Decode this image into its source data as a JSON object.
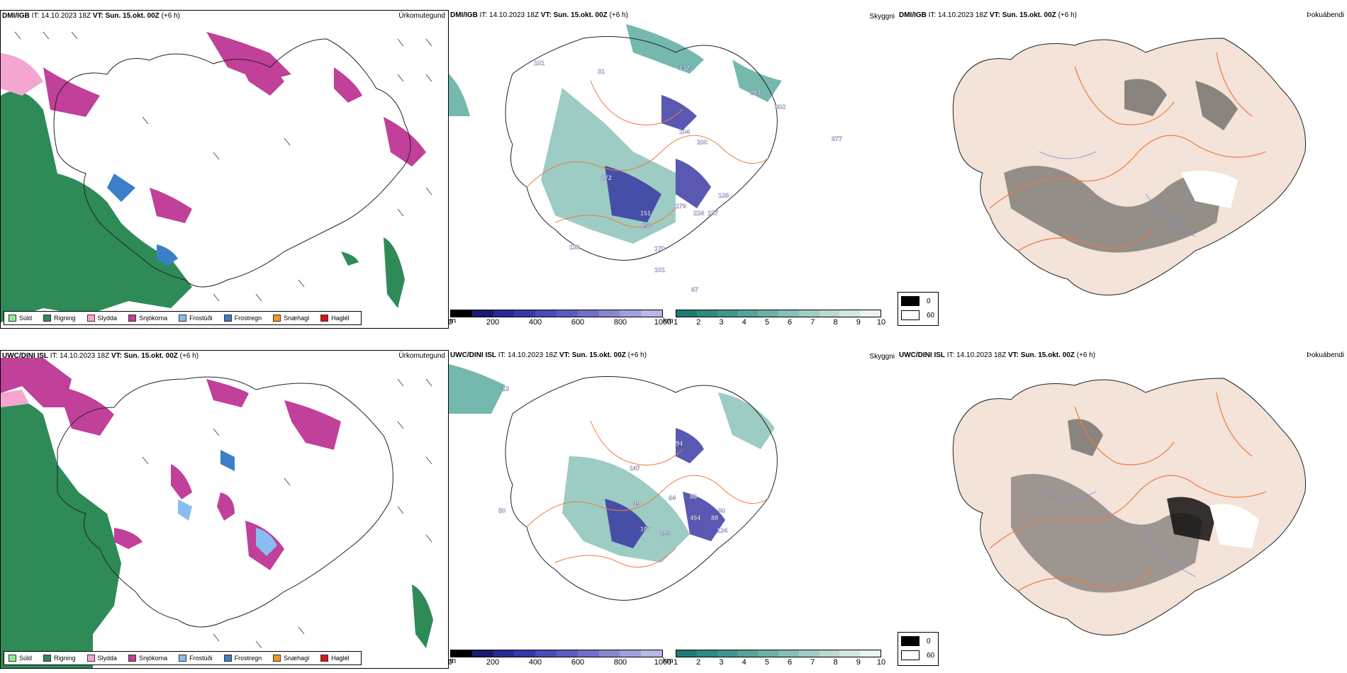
{
  "rows": [
    {
      "model": "DMI/IGB",
      "it_label": "IT:",
      "it_value": "14.10.2023 18Z",
      "vt_label": "VT:",
      "vt_value": "Sun. 15.okt. 00Z",
      "lead": "(+6 h)"
    },
    {
      "model": "UWC/DINI ISL",
      "it_label": "IT:",
      "it_value": "14.10.2023 18Z",
      "vt_label": "VT:",
      "vt_value": "Sun. 15.okt. 00Z",
      "lead": "(+6 h)"
    }
  ],
  "panel_labels": {
    "precip": "Úrkomutegund",
    "cloud": "Skyggni",
    "fog": "Þokuábendi"
  },
  "precip_legend": [
    {
      "label": "Súld",
      "color": "#90EE90"
    },
    {
      "label": "Rigning",
      "color": "#2E8B57"
    },
    {
      "label": "Slydda",
      "color": "#F4A6D0"
    },
    {
      "label": "Snjókoma",
      "color": "#C0409A"
    },
    {
      "label": "Frostúði",
      "color": "#87BDF0"
    },
    {
      "label": "Frostregn",
      "color": "#3A7FC8"
    },
    {
      "label": "Snæhagl",
      "color": "#F39A1F"
    },
    {
      "label": "Haglél",
      "color": "#E01010"
    }
  ],
  "height_bar": {
    "unit": "m",
    "ticks": [
      "0",
      "200",
      "400",
      "600",
      "800",
      "1000"
    ],
    "colors": [
      "#000000",
      "#1a1a6e",
      "#2a2a96",
      "#3838a8",
      "#4a4ab8",
      "#5c5cc0",
      "#7070c8",
      "#8888d2",
      "#a0a0dc",
      "#b8b8e6"
    ]
  },
  "vis_bar": {
    "unit": "km",
    "ticks": [
      "1",
      "2",
      "3",
      "4",
      "5",
      "6",
      "7",
      "8",
      "9",
      "10"
    ],
    "colors": [
      "#1f7a72",
      "#2f8a80",
      "#3f968c",
      "#55a399",
      "#6cb1a7",
      "#85bfb6",
      "#9fcdc5",
      "#bad9d3",
      "#d3e7e3",
      "#ecf4f2"
    ]
  },
  "fog_key": [
    {
      "label": "0",
      "color": "#000000"
    },
    {
      "label": "60",
      "color": "#ffffff"
    }
  ],
  "cloud_numbers": [
    {
      "row": 0,
      "values": [
        "101",
        "31",
        "132",
        "283",
        "802",
        "104",
        "200",
        "877",
        "172",
        "128",
        "179",
        "151",
        "224",
        "137",
        "256",
        "139",
        "170",
        "101",
        "67"
      ]
    },
    {
      "row": 1,
      "values": [
        "13",
        "94",
        "147",
        "84",
        "86",
        "49",
        "90",
        "454",
        "88",
        "107",
        "293",
        "124",
        "50"
      ]
    }
  ],
  "colors": {
    "land_fog": "#f3e3d8",
    "roads": "#f07a3a",
    "rivers": "#7a8ae0",
    "cloud_teal": "#3a9a8a",
    "cloud_blue": "#3030a0"
  }
}
